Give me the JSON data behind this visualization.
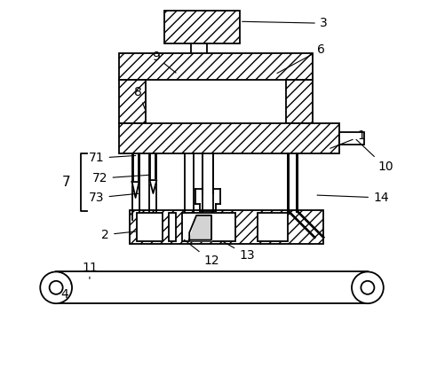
{
  "bg_color": "#ffffff",
  "line_color": "#000000",
  "hatch_pattern": "///",
  "figsize": [
    4.83,
    4.33
  ],
  "dpi": 100,
  "label_fs": 10,
  "lw": 1.3
}
